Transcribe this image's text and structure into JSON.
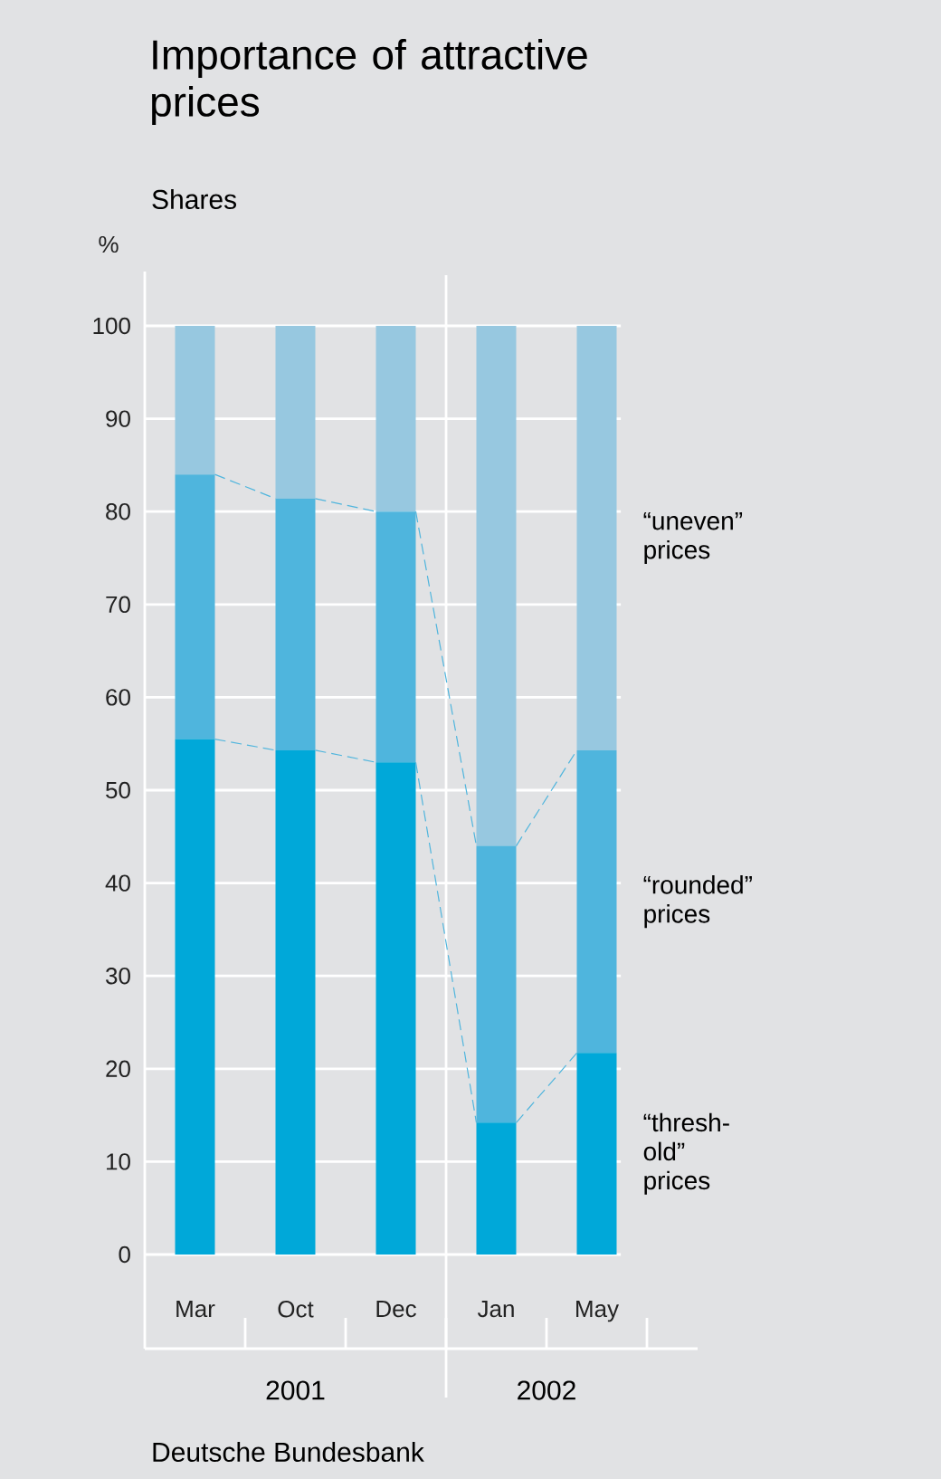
{
  "chart_data": {
    "type": "bar",
    "title": "Importance of attractive prices",
    "subtitle": "Shares",
    "ylabel": "%",
    "categories": [
      "Mar",
      "Oct",
      "Dec",
      "Jan",
      "May"
    ],
    "series": [
      {
        "name": "“thresh-old” prices",
        "color": "#00a8d9",
        "values": [
          55.5,
          54.3,
          53,
          14.2,
          21.7
        ]
      },
      {
        "name": "“rounded” prices",
        "color": "#4fb5dd",
        "values": [
          28.5,
          27.1,
          27,
          29.8,
          32.6
        ]
      },
      {
        "name": "“uneven” prices",
        "color": "#97c8e0",
        "values": [
          16,
          18.6,
          20,
          56,
          45.7
        ]
      }
    ],
    "stacked": true,
    "ylim": [
      0,
      100
    ],
    "yticks": [
      0,
      10,
      20,
      30,
      40,
      50,
      60,
      70,
      80,
      90,
      100
    ],
    "grid": "y",
    "annotations": [
      "2001",
      "2002",
      "Deutsche Bundesbank"
    ]
  }
}
